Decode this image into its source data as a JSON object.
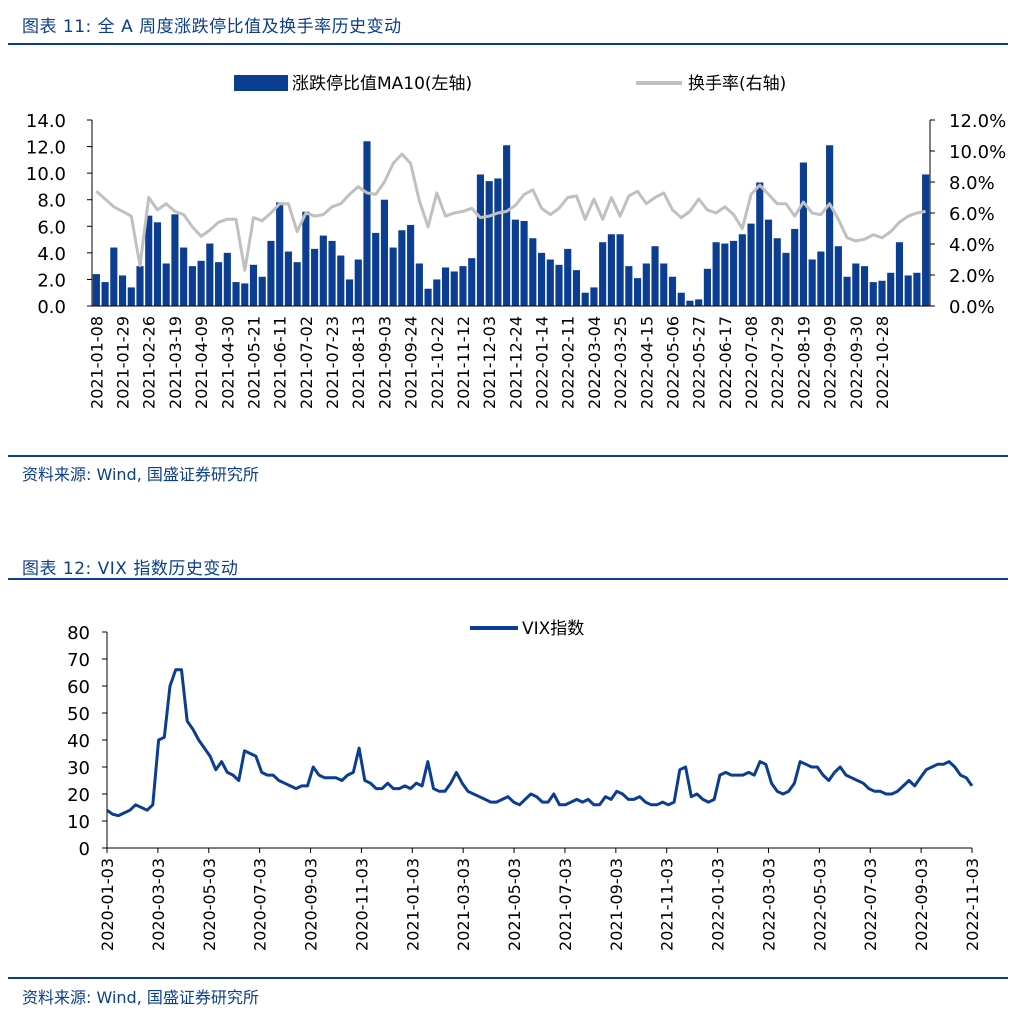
{
  "fig1": {
    "title": "图表 11:  全 A 周度涨跌停比值及换手率历史变动",
    "source": "资料来源:  Wind,  国盛证券研究所",
    "chart_data": {
      "type": "bar",
      "legend_placement": "top-center",
      "grid": false,
      "colors": {
        "bar": "#0b3d91",
        "line": "#c0c0c0"
      },
      "ylim_left": [
        0,
        14
      ],
      "yticks_left": [
        "14.0",
        "12.0",
        "10.0",
        "8.0",
        "6.0",
        "4.0",
        "2.0",
        "0.0"
      ],
      "ylim_right": [
        0,
        12
      ],
      "yticks_right": [
        "12.0%",
        "10.0%",
        "8.0%",
        "6.0%",
        "4.0%",
        "2.0%",
        "0.0%"
      ],
      "xtick_labels": [
        "2021-01-08",
        "2021-01-29",
        "2021-02-26",
        "2021-03-19",
        "2021-04-09",
        "2021-04-30",
        "2021-05-21",
        "2021-06-11",
        "2021-07-02",
        "2021-07-23",
        "2021-08-13",
        "2021-09-03",
        "2021-09-24",
        "2021-10-22",
        "2021-11-12",
        "2021-12-03",
        "2021-12-24",
        "2022-01-14",
        "2022-02-11",
        "2022-03-04",
        "2022-03-25",
        "2022-04-15",
        "2022-05-06",
        "2022-05-27",
        "2022-06-17",
        "2022-07-08",
        "2022-07-29",
        "2022-08-19",
        "2022-09-09",
        "2022-09-30",
        "2022-10-28"
      ],
      "series": [
        {
          "name": "涨跌停比值MA10(左轴)",
          "type": "bar",
          "values": [
            2.4,
            1.8,
            4.4,
            2.3,
            1.4,
            3.0,
            6.8,
            6.3,
            3.2,
            6.9,
            4.4,
            3.0,
            3.4,
            4.7,
            3.3,
            4.0,
            1.8,
            1.7,
            3.1,
            2.2,
            4.9,
            7.8,
            4.1,
            3.3,
            7.1,
            4.3,
            5.3,
            4.9,
            3.8,
            2.0,
            3.5,
            12.4,
            5.5,
            8.0,
            4.4,
            5.7,
            6.1,
            3.2,
            1.3,
            2.0,
            2.9,
            2.6,
            3.0,
            3.6,
            9.9,
            9.4,
            9.6,
            12.1,
            6.5,
            6.4,
            5.1,
            4.0,
            3.5,
            3.1,
            4.3,
            2.7,
            1.0,
            1.4,
            4.8,
            5.4,
            5.4,
            3.0,
            2.1,
            3.2,
            4.5,
            3.2,
            2.2,
            1.0,
            0.4,
            0.5,
            2.8,
            4.8,
            4.7,
            4.9,
            5.4,
            6.2,
            9.3,
            6.5,
            5.1,
            4.0,
            5.8,
            10.8,
            3.5,
            4.1,
            12.1,
            4.5,
            2.2,
            3.2,
            3.0,
            1.8,
            1.9,
            2.5,
            4.8,
            2.3,
            2.5,
            9.9
          ]
        },
        {
          "name": "换手率(右轴)",
          "type": "line",
          "values": [
            7.4,
            6.9,
            6.4,
            6.1,
            5.8,
            2.6,
            7.0,
            6.2,
            6.6,
            6.1,
            5.9,
            5.1,
            4.5,
            4.9,
            5.4,
            5.6,
            5.6,
            2.3,
            5.7,
            5.5,
            6.0,
            6.6,
            6.6,
            4.8,
            6.0,
            5.8,
            5.9,
            6.4,
            6.6,
            7.2,
            7.7,
            7.3,
            7.2,
            8.0,
            9.2,
            9.8,
            9.2,
            6.8,
            5.1,
            7.3,
            5.8,
            6.0,
            6.1,
            6.3,
            5.7,
            5.8,
            6.0,
            6.1,
            6.5,
            7.2,
            7.5,
            6.3,
            5.9,
            6.3,
            7.0,
            7.1,
            5.6,
            6.9,
            5.6,
            7.0,
            5.8,
            7.1,
            7.4,
            6.6,
            7.0,
            7.3,
            6.2,
            5.7,
            6.1,
            6.9,
            6.2,
            6.0,
            6.4,
            5.9,
            5.0,
            7.2,
            7.8,
            7.2,
            6.6,
            6.6,
            5.8,
            6.7,
            6.0,
            5.9,
            6.6,
            5.6,
            4.4,
            4.2,
            4.3,
            4.6,
            4.4,
            4.8,
            5.4,
            5.8,
            6.0,
            6.1
          ]
        }
      ]
    }
  },
  "fig2": {
    "title": "图表 12:  VIX 指数历史变动",
    "source": "资料来源:  Wind,  国盛证券研究所",
    "chart_data": {
      "type": "line",
      "legend_placement": "top-center",
      "grid": false,
      "colors": {
        "line": "#0b3d91"
      },
      "ylim": [
        0,
        80
      ],
      "yticks": [
        "80",
        "70",
        "60",
        "50",
        "40",
        "30",
        "20",
        "10",
        "0"
      ],
      "xtick_labels": [
        "2020-01-03",
        "2020-03-03",
        "2020-05-03",
        "2020-07-03",
        "2020-09-03",
        "2020-11-03",
        "2021-01-03",
        "2021-03-03",
        "2021-05-03",
        "2021-07-03",
        "2021-09-03",
        "2021-11-03",
        "2022-01-03",
        "2022-03-03",
        "2022-05-03",
        "2022-07-03",
        "2022-09-03",
        "2022-11-03"
      ],
      "series": [
        {
          "name": "VIX指数",
          "values": [
            14,
            12.5,
            12,
            13,
            14,
            16,
            15,
            14,
            16,
            40,
            41,
            60,
            66,
            66,
            47,
            44,
            40,
            37,
            34,
            29,
            32,
            28,
            27,
            25,
            36,
            35,
            34,
            28,
            27,
            27,
            25,
            24,
            23,
            22,
            23,
            23,
            30,
            27,
            26,
            26,
            26,
            25,
            27,
            28,
            37,
            25,
            24,
            22,
            22,
            24,
            22,
            22,
            23,
            22,
            24,
            23,
            32,
            22,
            21,
            21,
            24,
            28,
            24,
            21,
            20,
            19,
            18,
            17,
            17,
            18,
            19,
            17,
            16,
            18,
            20,
            19,
            17,
            17,
            20,
            16,
            16,
            17,
            18,
            17,
            18,
            16,
            16,
            19,
            18,
            21,
            20,
            18,
            18,
            19,
            17,
            16,
            16,
            17,
            16,
            17,
            29,
            30,
            19,
            20,
            18,
            17,
            18,
            27,
            28,
            27,
            27,
            27,
            28,
            27,
            32,
            31,
            24,
            21,
            20,
            21,
            24,
            32,
            31,
            30,
            30,
            27,
            25,
            28,
            30,
            27,
            26,
            25,
            24,
            22,
            21,
            21,
            20,
            20,
            21,
            23,
            25,
            23,
            26,
            29,
            30,
            31,
            31,
            32,
            30,
            27,
            26,
            23
          ]
        }
      ]
    }
  }
}
